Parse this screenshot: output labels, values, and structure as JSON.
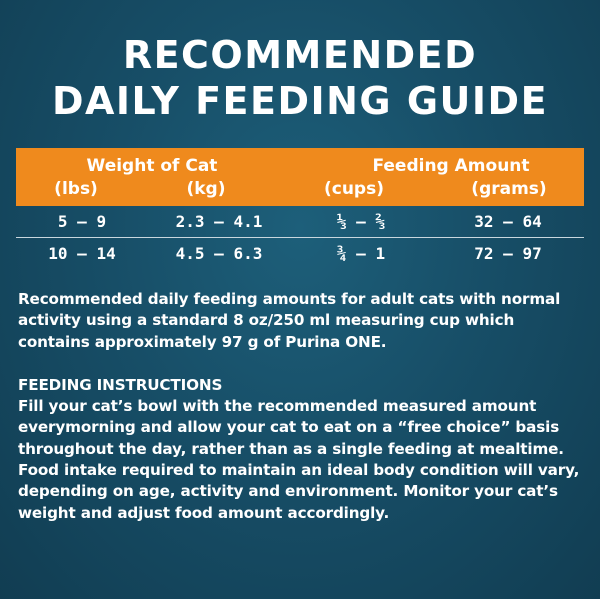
{
  "title": {
    "line1": "RECOMMENDED",
    "line2": "DAILY FEEDING GUIDE"
  },
  "table": {
    "weight_header": "Weight of Cat",
    "feeding_header": "Feeding Amount",
    "units": [
      "(lbs)",
      "(kg)",
      "(cups)",
      "(grams)"
    ],
    "rows": [
      [
        "5 – 9",
        "2.3 – 4.1",
        "⅓ – ⅔",
        "32 – 64"
      ],
      [
        "10 – 14",
        "4.5 – 6.3",
        "¾ – 1",
        "72 – 97"
      ]
    ]
  },
  "description": "Recommended daily feeding amounts for adult cats with normal activity using a standard 8 oz/250 ml measuring cup which contains approximately 97 g of Purina ONE.",
  "instructions": {
    "heading": "FEEDING INSTRUCTIONS",
    "text": "Fill your cat’s bowl with the recommended measured amount everymorning and allow your cat to eat on a “free choice” basis throughout the day, rather than as a single feeding at mealtime. Food intake required to maintain an ideal body condition will vary, depending on age, activity and environment. Monitor your cat’s weight and adjust food amount accordingly."
  },
  "colors": {
    "background": "#174e67",
    "header_band": "#ef8a1d",
    "text": "#ffffff"
  }
}
